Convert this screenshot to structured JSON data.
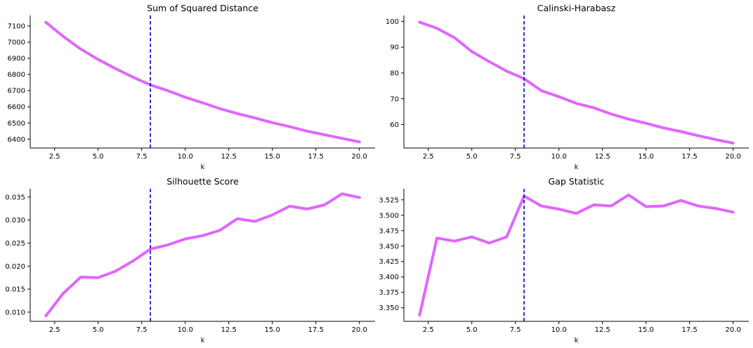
{
  "figure": {
    "line_color": "#e066ff",
    "marker_color": "#0000cc"
  },
  "chart_data": [
    {
      "type": "line",
      "title": "Sum of Squared Distance",
      "xlabel": "k",
      "ylabel": "",
      "xlim": [
        1.1,
        20.9
      ],
      "ylim": [
        6345,
        7165
      ],
      "x_ticks": [
        "2.5",
        "5.0",
        "7.5",
        "10.0",
        "12.5",
        "15.0",
        "17.5",
        "20.0"
      ],
      "y_ticks": [
        "6400",
        "6500",
        "6600",
        "6700",
        "6800",
        "6900",
        "7000",
        "7100"
      ],
      "vline": 8,
      "x": [
        2,
        3,
        4,
        5,
        6,
        7,
        8,
        9,
        10,
        11,
        12,
        13,
        14,
        15,
        16,
        17,
        18,
        19,
        20
      ],
      "values": [
        7123,
        7035,
        6957,
        6893,
        6836,
        6783,
        6735,
        6700,
        6659,
        6625,
        6588,
        6558,
        6531,
        6502,
        6477,
        6449,
        6427,
        6405,
        6383
      ]
    },
    {
      "type": "line",
      "title": "Calinski-Harabasz",
      "xlabel": "k",
      "ylabel": "",
      "xlim": [
        1.1,
        20.9
      ],
      "ylim": [
        50.9,
        102.3
      ],
      "x_ticks": [
        "2.5",
        "5.0",
        "7.5",
        "10.0",
        "12.5",
        "15.0",
        "17.5",
        "20.0"
      ],
      "y_ticks": [
        "60",
        "70",
        "80",
        "90",
        "100"
      ],
      "vline": 8,
      "x": [
        2,
        3,
        4,
        5,
        6,
        7,
        8,
        9,
        10,
        11,
        12,
        13,
        14,
        15,
        16,
        17,
        18,
        19,
        20
      ],
      "values": [
        99.7,
        97.3,
        93.7,
        88.3,
        84.4,
        80.7,
        77.8,
        73.1,
        70.8,
        68.2,
        66.5,
        64.1,
        62.1,
        60.5,
        58.7,
        57.3,
        55.7,
        54.2,
        52.8
      ]
    },
    {
      "type": "line",
      "title": "Silhouette Score",
      "xlabel": "k",
      "ylabel": "",
      "xlim": [
        1.1,
        20.9
      ],
      "ylim": [
        0.008,
        0.0368
      ],
      "x_ticks": [
        "2.5",
        "5.0",
        "7.5",
        "10.0",
        "12.5",
        "15.0",
        "17.5",
        "20.0"
      ],
      "y_ticks": [
        "0.010",
        "0.015",
        "0.020",
        "0.025",
        "0.030",
        "0.035"
      ],
      "vline": 8,
      "x": [
        2,
        3,
        4,
        5,
        6,
        7,
        8,
        9,
        10,
        11,
        12,
        13,
        14,
        15,
        16,
        17,
        18,
        19,
        20
      ],
      "values": [
        0.0092,
        0.0141,
        0.0176,
        0.0175,
        0.0189,
        0.0211,
        0.0237,
        0.0246,
        0.0259,
        0.0266,
        0.0278,
        0.0303,
        0.0297,
        0.0311,
        0.033,
        0.0324,
        0.0333,
        0.0357,
        0.0349
      ]
    },
    {
      "type": "line",
      "title": "Gap Statistic",
      "xlabel": "k",
      "ylabel": "",
      "xlim": [
        1.1,
        20.9
      ],
      "ylim": [
        3.328,
        3.543
      ],
      "x_ticks": [
        "2.5",
        "5.0",
        "7.5",
        "10.0",
        "12.5",
        "15.0",
        "17.5",
        "20.0"
      ],
      "y_ticks": [
        "3.350",
        "3.375",
        "3.400",
        "3.425",
        "3.450",
        "3.475",
        "3.500",
        "3.525"
      ],
      "vline": 8,
      "x": [
        2,
        3,
        4,
        5,
        6,
        7,
        8,
        9,
        10,
        11,
        12,
        13,
        14,
        15,
        16,
        17,
        18,
        19,
        20
      ],
      "values": [
        3.338,
        3.463,
        3.458,
        3.465,
        3.455,
        3.465,
        3.531,
        3.515,
        3.51,
        3.503,
        3.517,
        3.515,
        3.533,
        3.514,
        3.515,
        3.524,
        3.515,
        3.511,
        3.505
      ]
    }
  ]
}
